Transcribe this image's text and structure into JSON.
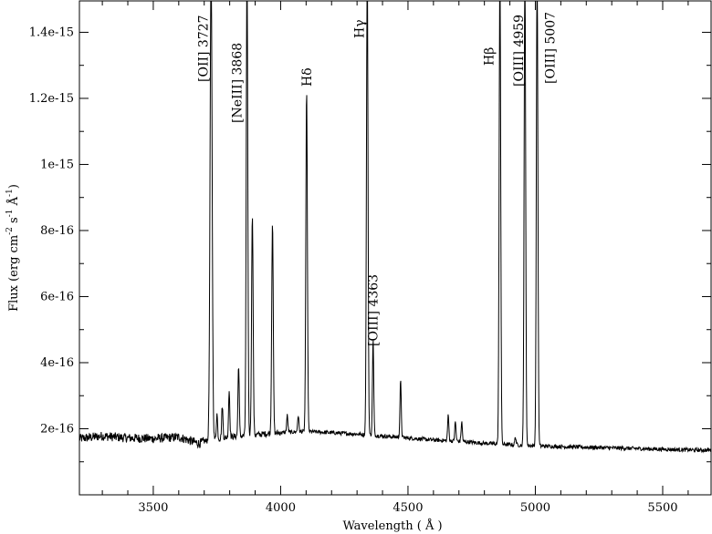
{
  "chart_data": {
    "type": "line",
    "xlabel": "Wavelength  ( Å )",
    "ylabel_parts": {
      "prefix": "Flux (erg cm",
      "exp1": "-2",
      "mid1": " s",
      "exp2": "-1",
      "mid2": " Å",
      "exp3": "-1",
      "suffix": ")"
    },
    "xlim": [
      3210,
      5690
    ],
    "ylim": [
      0,
      1.495e-15
    ],
    "x_ticks": [
      3500,
      4000,
      4500,
      5000,
      5500
    ],
    "x_tick_labels": [
      "3500",
      "4000",
      "4500",
      "5000",
      "5500"
    ],
    "x_minor_step": 100,
    "y_ticks": [
      2e-16,
      4e-16,
      6e-16,
      8e-16,
      1e-15,
      1.2e-15,
      1.4e-15
    ],
    "y_tick_labels": [
      "2e-16",
      "4e-16",
      "6e-16",
      "8e-16",
      "1e-15",
      "1.2e-15",
      "1.4e-15"
    ],
    "y_minor_step": 1e-16,
    "grid": false,
    "legend": "none",
    "line_color": "#000000",
    "continuum": [
      [
        3210,
        1.7e-16
      ],
      [
        3300,
        1.78e-16
      ],
      [
        3400,
        1.72e-16
      ],
      [
        3500,
        1.7e-16
      ],
      [
        3600,
        1.75e-16
      ],
      [
        3680,
        1.55e-16
      ],
      [
        3700,
        1.62e-16
      ],
      [
        3760,
        1.7e-16
      ],
      [
        3800,
        1.75e-16
      ],
      [
        3900,
        1.82e-16
      ],
      [
        4000,
        1.88e-16
      ],
      [
        4100,
        1.92e-16
      ],
      [
        4200,
        1.88e-16
      ],
      [
        4300,
        1.84e-16
      ],
      [
        4400,
        1.78e-16
      ],
      [
        4500,
        1.72e-16
      ],
      [
        4600,
        1.66e-16
      ],
      [
        4700,
        1.62e-16
      ],
      [
        4800,
        1.56e-16
      ],
      [
        4900,
        1.52e-16
      ],
      [
        5000,
        1.48e-16
      ],
      [
        5100,
        1.46e-16
      ],
      [
        5200,
        1.44e-16
      ],
      [
        5300,
        1.42e-16
      ],
      [
        5400,
        1.4e-16
      ],
      [
        5500,
        1.38e-16
      ],
      [
        5600,
        1.36e-16
      ],
      [
        5690,
        1.35e-16
      ]
    ],
    "lines": [
      {
        "wavelength": 3727,
        "peak": 1.6e-15,
        "width": 4
      },
      {
        "wavelength": 3750,
        "peak": 2.45e-16,
        "width": 2.5
      },
      {
        "wavelength": 3771,
        "peak": 2.7e-16,
        "width": 2.5
      },
      {
        "wavelength": 3798,
        "peak": 3.15e-16,
        "width": 2.5
      },
      {
        "wavelength": 3835,
        "peak": 3.95e-16,
        "width": 2.5
      },
      {
        "wavelength": 3868,
        "peak": 1.6e-15,
        "width": 3
      },
      {
        "wavelength": 3889,
        "peak": 8.55e-16,
        "width": 3
      },
      {
        "wavelength": 3968,
        "peak": 8.3e-16,
        "width": 3
      },
      {
        "wavelength": 4026,
        "peak": 2.4e-16,
        "width": 2.5
      },
      {
        "wavelength": 4069,
        "peak": 2.4e-16,
        "width": 2.5
      },
      {
        "wavelength": 4102,
        "peak": 1.23e-15,
        "width": 3
      },
      {
        "wavelength": 4340,
        "peak": 1.6e-15,
        "width": 3
      },
      {
        "wavelength": 4363,
        "peak": 4.7e-16,
        "width": 2.5
      },
      {
        "wavelength": 4471,
        "peak": 3.45e-16,
        "width": 2.5
      },
      {
        "wavelength": 4658,
        "peak": 2.4e-16,
        "width": 2.5
      },
      {
        "wavelength": 4686,
        "peak": 2.2e-16,
        "width": 2.5
      },
      {
        "wavelength": 4711,
        "peak": 2.2e-16,
        "width": 2.5
      },
      {
        "wavelength": 4861,
        "peak": 1.6e-15,
        "width": 3
      },
      {
        "wavelength": 4922,
        "peak": 1.75e-16,
        "width": 2.5
      },
      {
        "wavelength": 4959,
        "peak": 1.6e-15,
        "width": 3
      },
      {
        "wavelength": 5007,
        "peak": 1.6e-15,
        "width": 3
      }
    ],
    "annotations": [
      {
        "text": "[OII] 3727",
        "x": 3727
      },
      {
        "text": "[NeIII] 3868",
        "x": 3868
      },
      {
        "text": "Hδ",
        "x": 4102
      },
      {
        "text": "Hγ",
        "x": 4340
      },
      {
        "text": "[OIII] 4363",
        "x": 4363
      },
      {
        "text": "Hβ",
        "x": 4861
      },
      {
        "text": "[OIII] 4959",
        "x": 4959
      },
      {
        "text": "[OIII] 5007",
        "x": 5007
      }
    ]
  }
}
